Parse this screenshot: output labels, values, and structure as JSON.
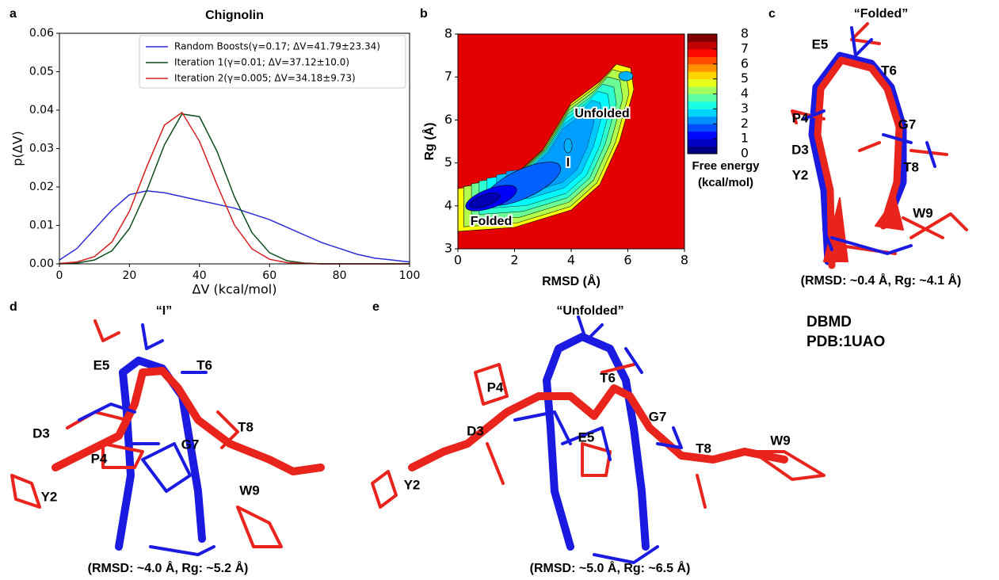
{
  "chart_data": [
    {
      "type": "line",
      "panel": "a",
      "title": "Chignolin",
      "x_label": "ΔV (kcal/mol)",
      "y_label": "p(ΔV)",
      "x": [
        0,
        5,
        10,
        15,
        20,
        25,
        30,
        35,
        40,
        45,
        50,
        55,
        60,
        65,
        70,
        75,
        80,
        85,
        90,
        95,
        100
      ],
      "series": [
        {
          "name": "Random Boosts(γ=0.17; ΔV=41.79±23.34)",
          "color": "#2b2bd8",
          "values": [
            0.001,
            0.004,
            0.009,
            0.014,
            0.018,
            0.019,
            0.0185,
            0.0175,
            0.0165,
            0.0155,
            0.0145,
            0.013,
            0.0115,
            0.0095,
            0.0075,
            0.0055,
            0.004,
            0.0025,
            0.0015,
            0.001,
            0.0005
          ]
        },
        {
          "name": "Iteration 1(γ=0.01; ΔV=37.12±10.0)",
          "color": "#0b4d1a",
          "values": [
            0,
            0.0002,
            0.001,
            0.0034,
            0.0092,
            0.0192,
            0.031,
            0.039,
            0.0383,
            0.0293,
            0.0174,
            0.0081,
            0.0029,
            0.0008,
            0.0002,
            0,
            0,
            0,
            0,
            0,
            0
          ]
        },
        {
          "name": "Iteration 2(γ=0.005; ΔV=34.18±9.73)",
          "color": "#d62020",
          "values": [
            0.0001,
            0.0005,
            0.0019,
            0.0057,
            0.0137,
            0.0254,
            0.0361,
            0.0394,
            0.0319,
            0.0206,
            0.0101,
            0.0039,
            0.0012,
            0.0003,
            0.0001,
            0,
            0,
            0,
            0,
            0,
            0
          ]
        }
      ],
      "xlim": [
        0,
        100
      ],
      "ylim": [
        0,
        0.06
      ],
      "xticks": [
        0,
        20,
        40,
        60,
        80,
        100
      ],
      "yticks": [
        {
          "value": 0,
          "label": "0.00"
        },
        {
          "value": 0.01,
          "label": "0.01"
        },
        {
          "value": 0.02,
          "label": "0.02"
        },
        {
          "value": 0.03,
          "label": "0.03"
        },
        {
          "value": 0.04,
          "label": "0.04"
        },
        {
          "value": 0.05,
          "label": "0.05"
        },
        {
          "value": 0.06,
          "label": "0.06"
        }
      ],
      "legend": "upper right"
    },
    {
      "type": "contour",
      "panel": "b",
      "x_label": "RMSD (Å)",
      "y_label": "Rg (Å)",
      "xlim": [
        0,
        8
      ],
      "ylim": [
        3,
        8
      ],
      "xticks": [
        0,
        2,
        4,
        6,
        8
      ],
      "yticks": [
        3,
        4,
        5,
        6,
        7,
        8
      ],
      "colormap": "jet",
      "colorbar": {
        "label": [
          "Free energy",
          "(kcal/mol)"
        ],
        "lim": [
          0,
          8
        ],
        "ticks": [
          0,
          1,
          2,
          3,
          4,
          5,
          6,
          7,
          8
        ]
      },
      "annotations": [
        "Unfolded",
        "I",
        "Folded"
      ]
    }
  ],
  "structures": [
    {
      "panel": "c",
      "title": "“Folded”",
      "caption": "(RMSD: ~0.4 Å, Rg: ~4.1 Å)",
      "residues": [
        "E5",
        "T6",
        "P4",
        "G7",
        "D3",
        "T8",
        "Y2",
        "W9"
      ]
    },
    {
      "panel": "d",
      "title": "“I”",
      "caption": "(RMSD: ~4.0 Å, Rg: ~5.2 Å)",
      "residues": [
        "E5",
        "T6",
        "D3",
        "T8",
        "G7",
        "P4",
        "Y2",
        "W9"
      ]
    },
    {
      "panel": "e",
      "title": "“Unfolded”",
      "caption": "(RMSD: ~5.0 Å, Rg: ~6.5 Å)",
      "residues": [
        "P4",
        "T6",
        "G7",
        "D3",
        "E5",
        "T8",
        "W9",
        "Y2"
      ]
    }
  ],
  "structure_legend": [
    {
      "name": "DBMD",
      "color": "#e8241c"
    },
    {
      "name": "PDB:1UAO",
      "color": "#1a1ae0"
    }
  ]
}
